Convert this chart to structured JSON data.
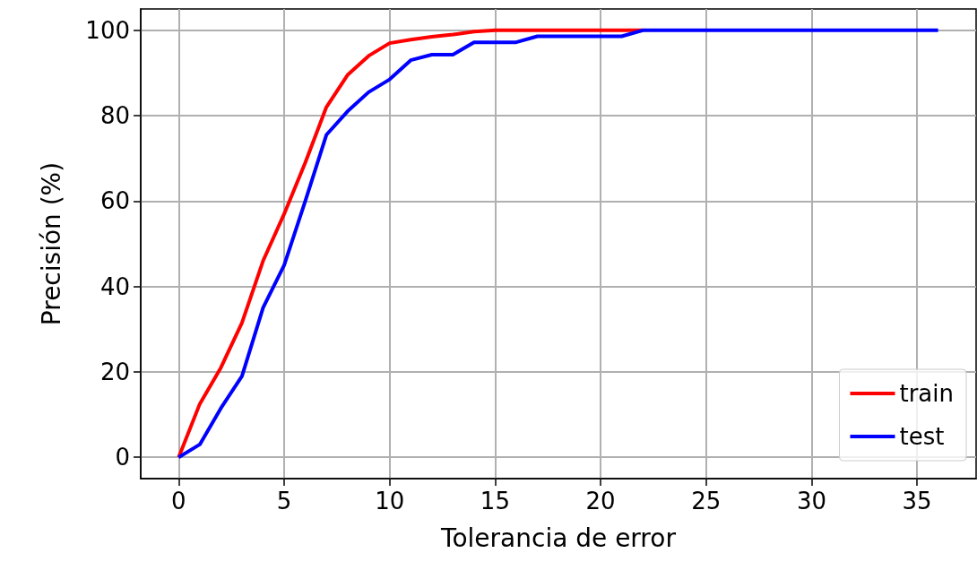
{
  "chart_data": {
    "type": "line",
    "xlabel": "Tolerancia de error",
    "ylabel": "Precisión (%)",
    "x": [
      0,
      1,
      2,
      3,
      4,
      5,
      6,
      7,
      8,
      9,
      10,
      11,
      12,
      13,
      14,
      15,
      16,
      17,
      18,
      19,
      20,
      21,
      22,
      23,
      24,
      25,
      26,
      27,
      28,
      29,
      30,
      31,
      32,
      33,
      34,
      35,
      36
    ],
    "series": [
      {
        "name": "train",
        "color": "#ff0000",
        "values": [
          0,
          12.5,
          21,
          31.5,
          46,
          57,
          69,
          82,
          89.5,
          94,
          97,
          97.8,
          98.5,
          99,
          99.7,
          100,
          100,
          100,
          100,
          100,
          100,
          100,
          100,
          null,
          null,
          null,
          null,
          null,
          null,
          null,
          null,
          null,
          null,
          null,
          null,
          null,
          null
        ]
      },
      {
        "name": "test",
        "color": "#0000ff",
        "values": [
          0,
          3,
          11.5,
          19,
          35,
          45,
          60,
          75.5,
          81,
          85.5,
          88.5,
          93,
          94.3,
          94.3,
          97.2,
          97.2,
          97.2,
          98.6,
          98.6,
          98.6,
          98.6,
          98.6,
          100,
          100,
          100,
          100,
          100,
          100,
          100,
          100,
          100,
          100,
          100,
          100,
          100,
          100,
          100
        ]
      }
    ],
    "xlim": [
      -1.8,
      37.8
    ],
    "xticks": [
      0,
      5,
      10,
      15,
      20,
      25,
      30,
      35
    ],
    "ylim": [
      -5,
      105
    ],
    "yticks": [
      0,
      20,
      40,
      60,
      80,
      100
    ],
    "grid": true,
    "legend": "bottom right",
    "marker": "none",
    "line_style": "solid"
  }
}
